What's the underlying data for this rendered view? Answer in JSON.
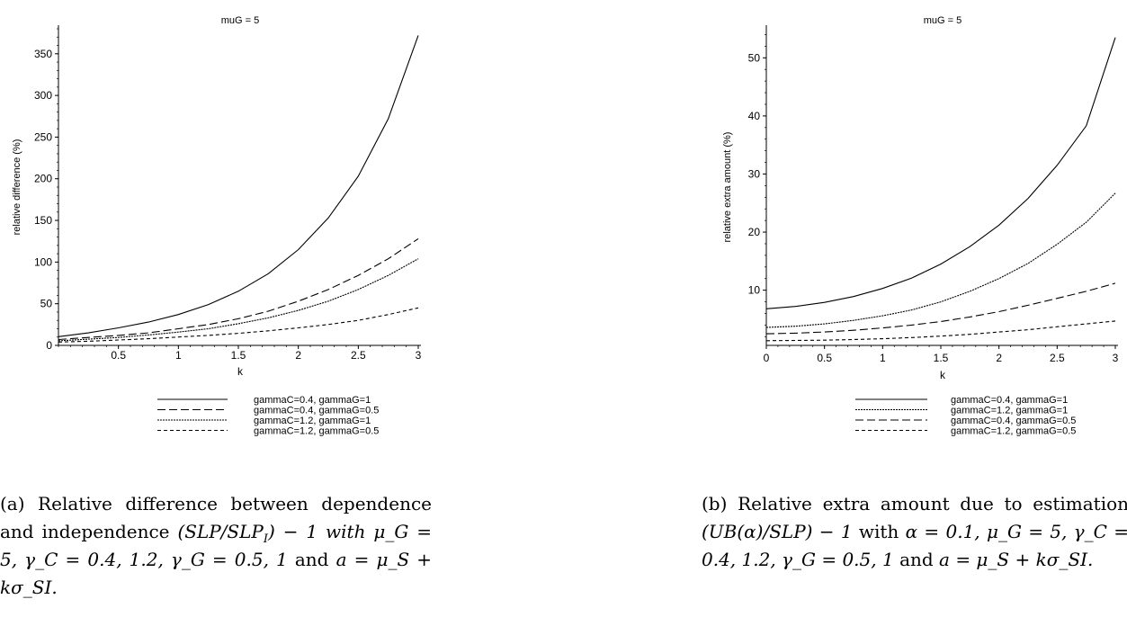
{
  "chart_data": [
    {
      "id": "a",
      "type": "line",
      "title": "muG = 5",
      "xlabel": "k",
      "ylabel": "relative difference (%)",
      "xlim": [
        0,
        3
      ],
      "ylim": [
        0,
        380
      ],
      "xticks": [
        0.5,
        1,
        1.5,
        2,
        2.5,
        3
      ],
      "yticks": [
        0,
        50,
        100,
        150,
        200,
        250,
        300,
        350
      ],
      "grid": false,
      "legend_position": "bottom-right",
      "series": [
        {
          "name": "gammaC=0.4, gammaG=1",
          "dash": "",
          "x": [
            0,
            0.25,
            0.5,
            0.75,
            1,
            1.25,
            1.5,
            1.75,
            2,
            2.25,
            2.5,
            2.75,
            3
          ],
          "y": [
            10.5,
            15,
            21,
            28,
            37,
            49,
            65,
            86,
            115,
            153,
            203,
            272,
            372
          ]
        },
        {
          "name": "gammaC=0.4, gammaG=0.5",
          "dash": "9,4",
          "x": [
            0,
            0.25,
            0.5,
            0.75,
            1,
            1.25,
            1.5,
            1.75,
            2,
            2.25,
            2.5,
            2.75,
            3
          ],
          "y": [
            7,
            9.5,
            12,
            15,
            20,
            25,
            32,
            41,
            53,
            67,
            84,
            104,
            128
          ]
        },
        {
          "name": "gammaC=1.2, gammaG=1",
          "dash": "2,1",
          "x": [
            0,
            0.25,
            0.5,
            0.75,
            1,
            1.25,
            1.5,
            1.75,
            2,
            2.25,
            2.5,
            2.75,
            3
          ],
          "y": [
            5.5,
            7.5,
            9.5,
            12.5,
            16,
            20,
            26,
            33,
            42,
            53,
            67,
            84,
            104
          ]
        },
        {
          "name": "gammaC=1.2, gammaG=0.5",
          "dash": "4,3",
          "x": [
            0,
            0.25,
            0.5,
            0.75,
            1,
            1.25,
            1.5,
            1.75,
            2,
            2.25,
            2.5,
            2.75,
            3
          ],
          "y": [
            4,
            5,
            6.5,
            8,
            10,
            12,
            14.5,
            17.5,
            21,
            25,
            30,
            37,
            45
          ]
        }
      ]
    },
    {
      "id": "b",
      "type": "line",
      "title": "muG = 5",
      "xlabel": "k",
      "ylabel": "relative extra amount (%)",
      "xlim": [
        0,
        3
      ],
      "ylim": [
        0.5,
        55
      ],
      "xticks": [
        0,
        0.5,
        1,
        1.5,
        2,
        2.5,
        3
      ],
      "yticks": [
        10,
        20,
        30,
        40,
        50
      ],
      "grid": false,
      "legend_position": "bottom-right",
      "series": [
        {
          "name": "gammaC=0.4, gammaG=1",
          "dash": "",
          "x": [
            0,
            0.25,
            0.5,
            0.75,
            1,
            1.25,
            1.5,
            1.75,
            2,
            2.25,
            2.5,
            2.75,
            3
          ],
          "y": [
            6.8,
            7.2,
            7.9,
            8.9,
            10.3,
            12.1,
            14.5,
            17.5,
            21.2,
            25.8,
            31.5,
            38.3,
            53.5
          ]
        },
        {
          "name": "gammaC=1.2, gammaG=1",
          "dash": "2,1",
          "x": [
            0,
            0.25,
            0.5,
            0.75,
            1,
            1.25,
            1.5,
            1.75,
            2,
            2.25,
            2.5,
            2.75,
            3
          ],
          "y": [
            3.6,
            3.8,
            4.2,
            4.8,
            5.6,
            6.6,
            8,
            9.8,
            12,
            14.6,
            17.9,
            21.7,
            26.7
          ]
        },
        {
          "name": "gammaC=0.4, gammaG=0.5",
          "dash": "9,4",
          "x": [
            0,
            0.25,
            0.5,
            0.75,
            1,
            1.25,
            1.5,
            1.75,
            2,
            2.25,
            2.5,
            2.75,
            3
          ],
          "y": [
            2.5,
            2.6,
            2.8,
            3.1,
            3.5,
            4,
            4.6,
            5.4,
            6.3,
            7.4,
            8.6,
            9.8,
            11.2
          ]
        },
        {
          "name": "gammaC=1.2, gammaG=0.5",
          "dash": "4,3",
          "x": [
            0,
            0.25,
            0.5,
            0.75,
            1,
            1.25,
            1.5,
            1.75,
            2,
            2.25,
            2.5,
            2.75,
            3
          ],
          "y": [
            1.3,
            1.35,
            1.4,
            1.5,
            1.65,
            1.85,
            2.1,
            2.4,
            2.8,
            3.2,
            3.7,
            4.2,
            4.7
          ]
        }
      ]
    }
  ],
  "captions": {
    "a": {
      "label": "(a)",
      "text": "Relative difference between dependence and independence",
      "formula_main": "(SLP/SLP",
      "formula_sub": "I",
      "formula_tail": ") − 1",
      "with_word": "with",
      "params": "μ_G = 5, γ_C = 0.4, 1.2, γ_G = 0.5, 1",
      "and_word": "and",
      "a_formula": "a = μ_S + kσ_SI."
    },
    "b": {
      "label": "(b)",
      "text": "Relative extra amount due to estimation",
      "formula": "(UB(α)/SLP) − 1",
      "with_word": "with",
      "params": "α = 0.1, μ_G = 5, γ_C = 0.4, 1.2, γ_G = 0.5, 1",
      "and_word": "and",
      "a_formula": "a = μ_S + kσ_SI."
    }
  }
}
